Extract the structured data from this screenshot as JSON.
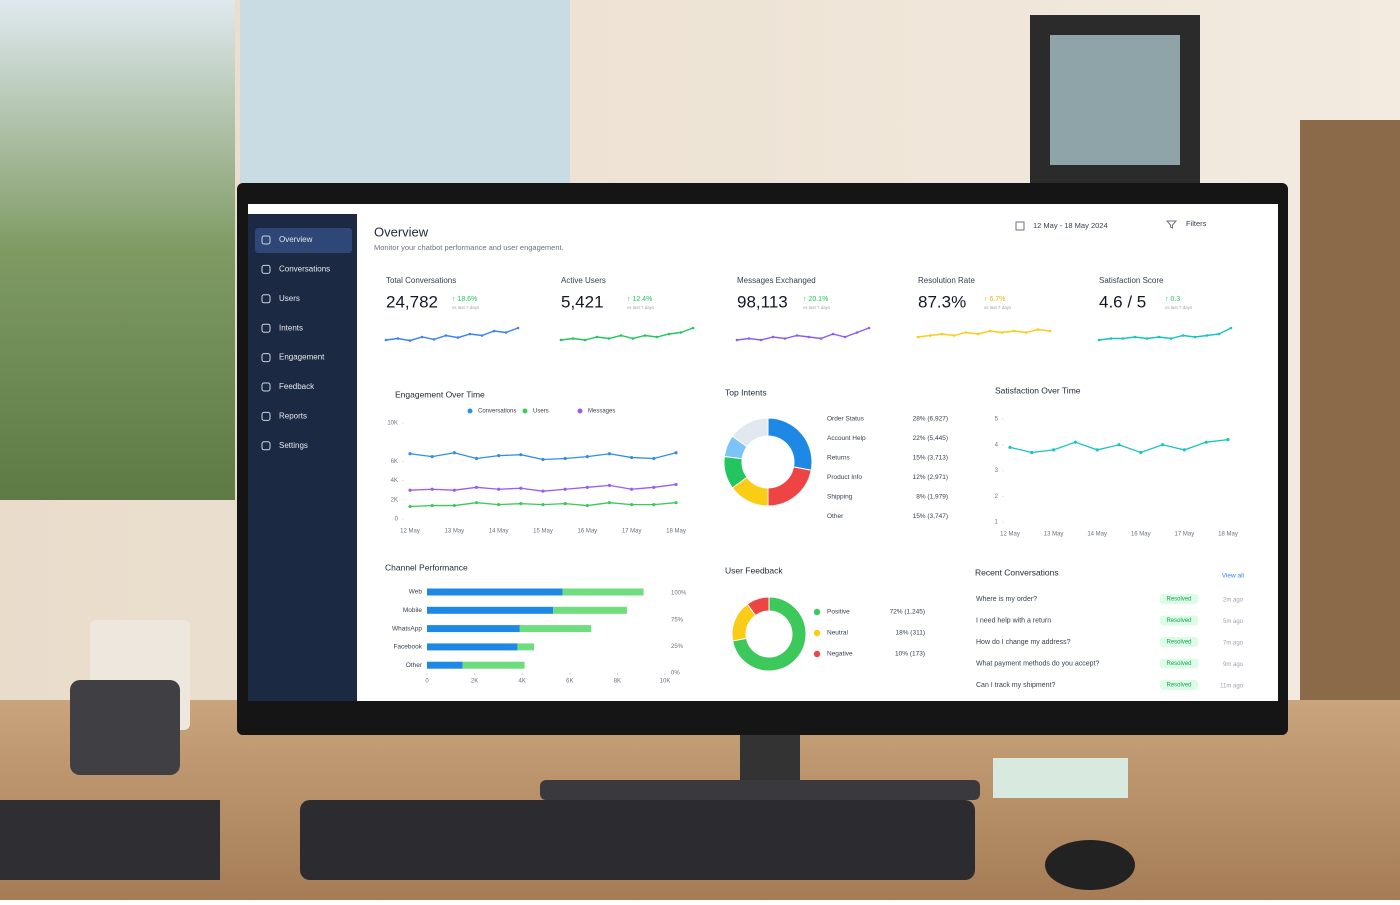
{
  "sidebar": {
    "items": [
      "Overview",
      "Conversations",
      "Users",
      "Intents",
      "Engagement",
      "Feedback",
      "Reports",
      "Settings"
    ]
  },
  "header": {
    "title": "Overview",
    "subtitle": "Monitor your chatbot performance and user engagement.",
    "date_range": "12 May - 18 May 2024",
    "filters": "Filters"
  },
  "kpis": {
    "spark_ylim": [
      0,
      10
    ],
    "cards": [
      {
        "label": "Total Conversations",
        "value": "24,782",
        "change": "↑ 18.6%",
        "note": "vs last 7 days",
        "color": "#3b82f6",
        "spark": [
          4,
          4.5,
          3.8,
          5,
          4.2,
          5.5,
          4.8,
          6,
          5.5,
          7,
          6.5,
          8
        ]
      },
      {
        "label": "Active Users",
        "value": "5,421",
        "change": "↑ 12.4%",
        "note": "vs last 7 days",
        "color": "#22c55e",
        "spark": [
          4,
          4.5,
          4,
          5,
          4.5,
          5.5,
          4.5,
          5.5,
          5,
          6,
          6.5,
          8
        ]
      },
      {
        "label": "Messages Exchanged",
        "value": "98,113",
        "change": "↑ 20.1%",
        "note": "vs last 7 days",
        "color": "#8b5cf6",
        "spark": [
          4,
          4.5,
          4,
          5,
          4.5,
          5.5,
          5,
          4.5,
          6,
          5,
          6.5,
          8
        ]
      },
      {
        "label": "Resolution Rate",
        "value": "87.3%",
        "change": "↑ 6.7%",
        "note": "vs last 7 days",
        "color": "#facc15",
        "spark": [
          5,
          5.5,
          6,
          5.5,
          6.5,
          6,
          7,
          6.5,
          7,
          6.5,
          7.5,
          7
        ]
      },
      {
        "label": "Satisfaction Score",
        "value": "4.6 / 5",
        "change": "↑ 0.3",
        "note": "vs last 7 days",
        "color": "#14c4c4",
        "spark": [
          4,
          4.5,
          4.5,
          5,
          4.5,
          5,
          4.5,
          5.5,
          5,
          5.5,
          6,
          8
        ]
      }
    ]
  },
  "engagement": {
    "type": "line",
    "title": "Engagement Over Time",
    "categories": [
      "12 May",
      null,
      "13 May",
      null,
      "14 May",
      null,
      "15 May",
      null,
      "16 May",
      null,
      "17 May",
      null,
      "18 May"
    ],
    "ylim": [
      0,
      10000
    ],
    "yticks": [
      0,
      {
        "value": 2000,
        "label": "2K"
      },
      {
        "value": 4000,
        "label": "4K"
      },
      {
        "value": 6000,
        "label": "6K"
      },
      {
        "value": 10000,
        "label": "10K"
      }
    ],
    "series": [
      {
        "name": "Conversations",
        "color": "#2f8ee8",
        "values": [
          6800,
          6500,
          6900,
          6300,
          6600,
          6700,
          6200,
          6300,
          6500,
          6800,
          6400,
          6300,
          6900
        ]
      },
      {
        "name": "Users",
        "color": "#3cc85a",
        "values": [
          1300,
          1400,
          1400,
          1700,
          1500,
          1600,
          1500,
          1600,
          1400,
          1700,
          1500,
          1500,
          1700
        ]
      },
      {
        "name": "Messages",
        "color": "#9b5cf0",
        "values": [
          3000,
          3100,
          3000,
          3300,
          3100,
          3200,
          2900,
          3100,
          3300,
          3500,
          3100,
          3300,
          3600
        ]
      }
    ]
  },
  "top_intents": {
    "type": "donut",
    "title": "Top Intents",
    "categories": [
      "Order Status",
      "Account Help",
      "Returns",
      "Product Info",
      "Shipping",
      "Other"
    ],
    "values": [
      28,
      22,
      15,
      12,
      8,
      15
    ],
    "value_labels": [
      "28% (6,927)",
      "22% (5,445)",
      "15% (3,713)",
      "12% (2,971)",
      "8% (1,979)",
      "15% (3,747)"
    ],
    "colors": [
      "#1e88e5",
      "#ef4444",
      "#facc15",
      "#22c55e",
      "#7cc4f8",
      "#e2e8f0"
    ]
  },
  "satisfaction": {
    "type": "line",
    "title": "Satisfaction Over Time",
    "categories": [
      "12 May",
      null,
      "13 May",
      null,
      "14 May",
      null,
      "16 May",
      null,
      "17 May",
      null,
      "18 May"
    ],
    "values": [
      3.9,
      3.7,
      3.8,
      4.1,
      3.8,
      4.0,
      3.7,
      4.0,
      3.8,
      4.1,
      4.2
    ],
    "color": "#19c3c3",
    "ylim": [
      1,
      5
    ],
    "yticks": [
      1,
      2,
      3,
      4,
      5
    ]
  },
  "channels": {
    "type": "bar",
    "title": "Channel Performance",
    "categories": [
      "Web",
      "Mobile",
      "WhatsApp",
      "Facebook",
      "Other"
    ],
    "series": [
      {
        "color": "#1e88e5",
        "values": [
          5700,
          5300,
          3900,
          3800,
          1500
        ]
      },
      {
        "color": "#6fdc7e",
        "values": [
          3400,
          3100,
          3000,
          700,
          2600
        ]
      }
    ],
    "xlim": [
      0,
      10000
    ],
    "xticks": [
      0,
      {
        "value": 2000,
        "label": "2K"
      },
      {
        "value": 4000,
        "label": "4K"
      },
      {
        "value": 6000,
        "label": "6K"
      },
      {
        "value": 8000,
        "label": "8K"
      },
      {
        "value": 10000,
        "label": "10K"
      }
    ],
    "right_labels": [
      "100%",
      "75%",
      "25%",
      "0%"
    ]
  },
  "feedback": {
    "type": "donut",
    "title": "User Feedback",
    "categories": [
      "Positive",
      "Neutral",
      "Negative"
    ],
    "values": [
      72,
      18,
      10
    ],
    "value_labels": [
      "72% (1,245)",
      "18% (311)",
      "10% (173)"
    ],
    "colors": [
      "#3cc85a",
      "#facc15",
      "#ef4444"
    ]
  },
  "recent": {
    "title": "Recent Conversations",
    "link": "View all",
    "rows": [
      {
        "text": "Where is my order?",
        "status": "Resolved",
        "time": "2m ago"
      },
      {
        "text": "I need help with a return",
        "status": "Resolved",
        "time": "5m ago"
      },
      {
        "text": "How do I change my address?",
        "status": "Resolved",
        "time": "7m ago"
      },
      {
        "text": "What payment methods do you accept?",
        "status": "Resolved",
        "time": "9m ago"
      },
      {
        "text": "Can I track my shipment?",
        "status": "Resolved",
        "time": "11m ago"
      }
    ]
  }
}
